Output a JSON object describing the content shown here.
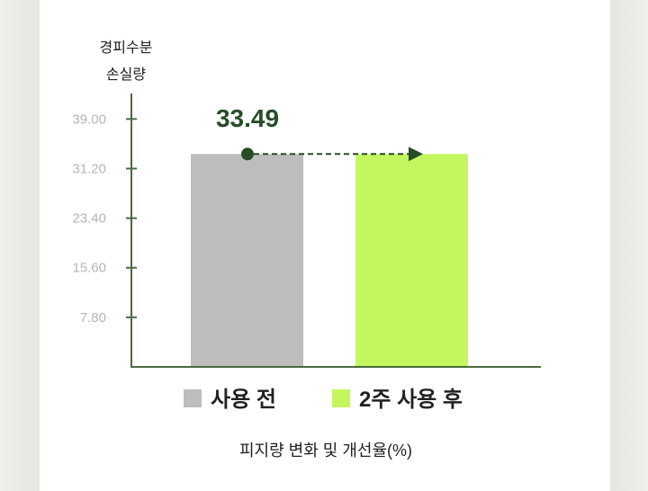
{
  "chart_data": {
    "type": "bar",
    "ylabel_lines": [
      "경피수분",
      "손실량"
    ],
    "xlabel": "피지량 변화 및 개선율(%)",
    "yticks": [
      "7.80",
      "15.60",
      "23.40",
      "31.20",
      "39.00"
    ],
    "ylim": [
      0,
      43.29
    ],
    "categories": [
      "사용 전",
      "2주 사용 후"
    ],
    "series": [
      {
        "values": [
          33.49,
          33.49
        ]
      }
    ],
    "data_labels": [
      "33.49"
    ],
    "legend": [
      {
        "label": "사용 전",
        "color": "#bdbdbd"
      },
      {
        "label": "2주 사용 후",
        "color": "#c4f75f"
      }
    ],
    "legend_position": "bottom",
    "grid": false,
    "colors": {
      "axis": "#4a6b3f",
      "bar_before": "#bdbdbd",
      "bar_after": "#c4f75f",
      "marker": "#264d27",
      "arrow": "#264d27"
    }
  }
}
